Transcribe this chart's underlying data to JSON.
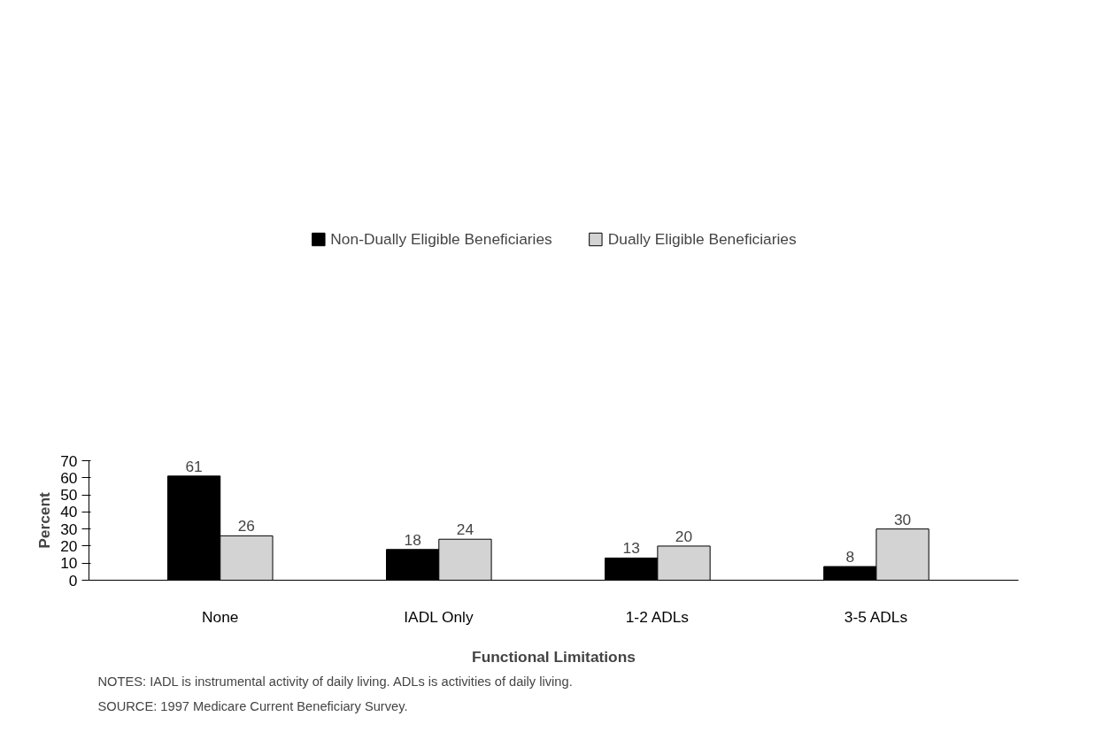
{
  "chart_data": {
    "type": "bar",
    "xlabel": "Functional Limitations",
    "ylabel": "Percent",
    "categories": [
      "None",
      "IADL Only",
      "1-2 ADLs",
      "3-5 ADLs"
    ],
    "series": [
      {
        "name": "Non-Dually Eligible Beneficiaries",
        "color": "#000000",
        "values": [
          61,
          18,
          13,
          8
        ]
      },
      {
        "name": "Dually Eligible Beneficiaries",
        "color": "#d3d3d3",
        "values": [
          26,
          24,
          20,
          30
        ]
      }
    ],
    "ylim": [
      0,
      70
    ],
    "yticks": [
      0,
      10,
      20,
      30,
      40,
      50,
      60,
      70
    ],
    "grid": false,
    "legend": "top",
    "data_labels": true,
    "annotations": [
      "NOTES: IADL is instrumental activity of daily living. ADLs is activities of daily living.",
      "SOURCE:  1997 Medicare Current Beneficiary Survey."
    ]
  }
}
